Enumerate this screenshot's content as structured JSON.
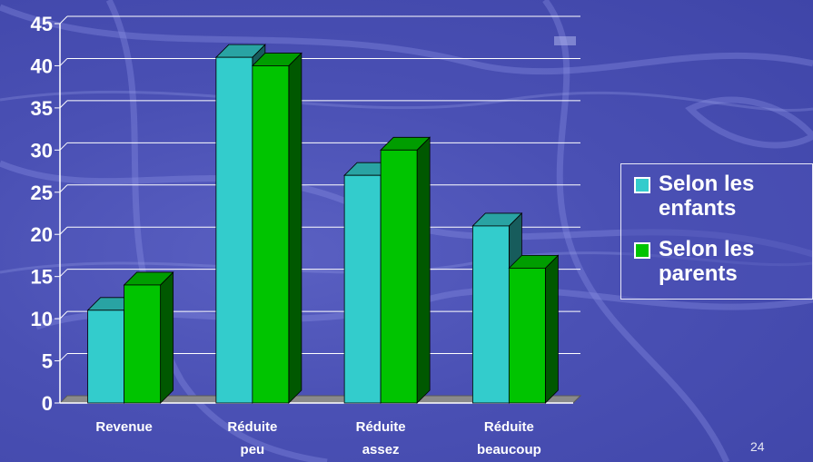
{
  "chart_data": {
    "type": "bar",
    "style": "3d-clustered",
    "categories": [
      [
        "Revenue"
      ],
      [
        "Réduite",
        "peu"
      ],
      [
        "Réduite",
        "assez"
      ],
      [
        "Réduite",
        "beaucoup"
      ]
    ],
    "series": [
      {
        "name": "Selon les enfants",
        "color": "#33cccc",
        "values": [
          11,
          41,
          27,
          21
        ]
      },
      {
        "name": "Selon les parents",
        "color": "#00c400",
        "values": [
          14,
          40,
          30,
          16
        ]
      }
    ],
    "yticks": [
      "0",
      "5",
      "10",
      "15",
      "20",
      "25",
      "30",
      "35",
      "40",
      "45"
    ],
    "ylim": [
      0,
      45
    ],
    "grid": true,
    "legend": "right",
    "title": "",
    "xlabel": "",
    "ylabel": ""
  },
  "legend": {
    "items": [
      {
        "label": "Selon les enfants",
        "color": "#33cccc"
      },
      {
        "label": "Selon les parents",
        "color": "#00c400"
      }
    ]
  },
  "page_number": "24"
}
